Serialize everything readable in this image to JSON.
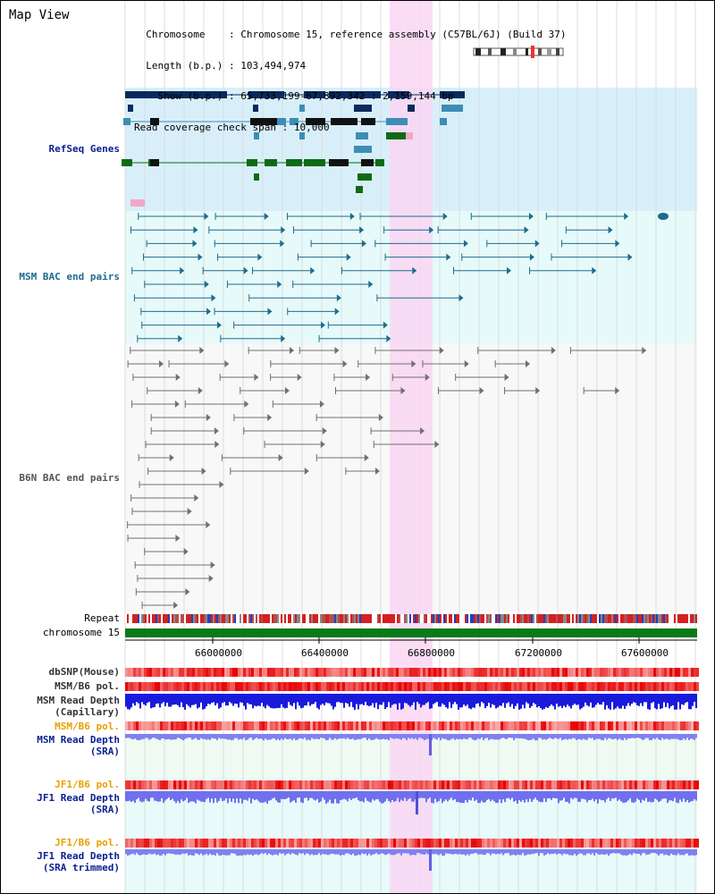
{
  "title": "Map View",
  "info": {
    "chromosome_key": "Chromosome",
    "chromosome_val": "Chromosome 15, reference assembly (C57BL/6J) (Build 37)",
    "length_key": "Length (b.p.)",
    "length_val": "103,494,974",
    "show_key": "Show (b.p.)",
    "show_val": "65,733,199-67,892,342 : 2,159,144 bp",
    "span_key": "Read coverage check span",
    "span_val": "10,000"
  },
  "tracks": {
    "refseq": "RefSeq Genes",
    "msm_bac": "MSM BAC end pairs",
    "b6n_bac": "B6N BAC end pairs",
    "repeat": "Repeat",
    "chromosome": "chromosome 15",
    "dbsnp": "dbSNP(Mouse)",
    "msm_b6_pol": "MSM/B6 pol.",
    "msm_read_depth_cap_1": "MSM Read Depth",
    "msm_read_depth_cap_2": "(Capillary)",
    "msm_b6_pol_2": "MSM/B6 pol.",
    "msm_read_depth_sra_1": "MSM Read Depth",
    "msm_read_depth_sra_2": "(SRA)",
    "jf1_b6_pol": "JF1/B6 pol.",
    "jf1_read_depth_sra_1": "JF1 Read Depth",
    "jf1_read_depth_sra_2": "(SRA)",
    "jf1_b6_pol_2": "JF1/B6 pol.",
    "jf1_read_depth_trim_1": "JF1 Read Depth",
    "jf1_read_depth_trim_2": "(SRA trimmed)"
  },
  "axis": {
    "ticks": [
      "66000000",
      "66400000",
      "66800000",
      "67200000",
      "67600000"
    ]
  },
  "colors": {
    "refseq_bg": "#d8effa",
    "msm_bg": "#e6fafa",
    "b6n_bg": "#f8f8f8",
    "highlight": "#f9d6f3",
    "gene_dark": "#0a2a5e",
    "gene_mid": "#3d8db5",
    "gene_green": "#0d6b16",
    "msm_line": "#1f6b8c",
    "b6n_line": "#707070",
    "label_refseq": "#0a1f8f",
    "label_orange": "#e8a000",
    "label_grey": "#333333"
  }
}
